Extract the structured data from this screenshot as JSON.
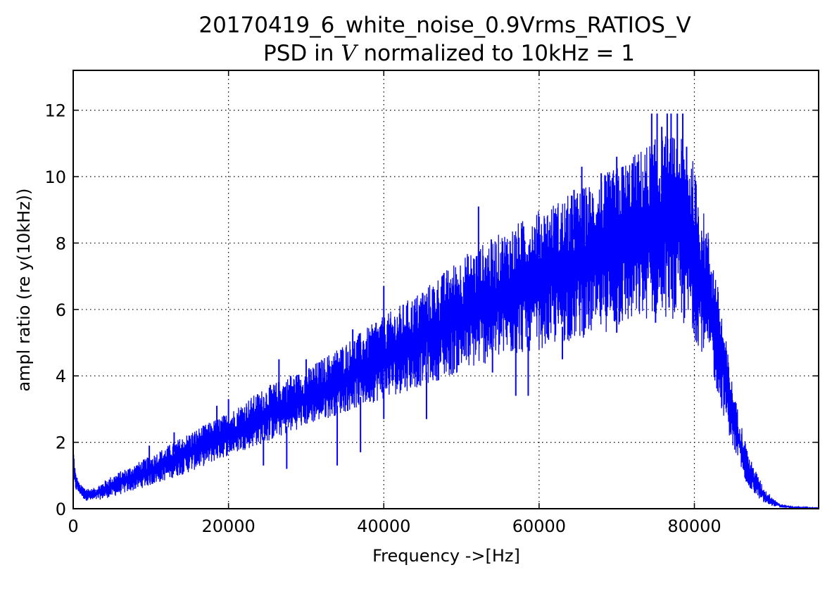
{
  "chart_data": {
    "type": "line",
    "title": "20170419_6_white_noise_0.9Vrms_RATIOS_V",
    "subtitle_parts": {
      "prefix": "PSD in ",
      "symbol": "V",
      "suffix": " normalized to 10kHz = 1"
    },
    "xlabel": "Frequency ->[Hz]",
    "ylabel": "ampl ratio (re y(10kHz))",
    "xlim": [
      0,
      96000
    ],
    "ylim": [
      0,
      13.2
    ],
    "xticks": [
      0,
      20000,
      40000,
      60000,
      80000
    ],
    "yticks": [
      0,
      2,
      4,
      6,
      8,
      10,
      12
    ],
    "xtick_labels": [
      "0",
      "20000",
      "40000",
      "60000",
      "80000"
    ],
    "ytick_labels": [
      "0",
      "2",
      "4",
      "6",
      "8",
      "10",
      "12"
    ],
    "grid": true,
    "series": [
      {
        "name": "ratio",
        "color": "#0000ff",
        "envelope": {
          "x": [
            0,
            300,
            800,
            1500,
            2500,
            5000,
            10000,
            15000,
            20000,
            25000,
            30000,
            35000,
            40000,
            45000,
            50000,
            55000,
            60000,
            65000,
            70000,
            74000,
            76000,
            78000,
            79500,
            80500,
            82000,
            83500,
            85000,
            87000,
            89000,
            91000,
            93000,
            96000
          ],
          "upper": [
            2.0,
            1.1,
            0.75,
            0.65,
            0.6,
            1.0,
            1.6,
            2.3,
            2.9,
            3.7,
            4.2,
            5.0,
            5.8,
            6.6,
            7.6,
            8.3,
            9.0,
            9.6,
            10.3,
            11.0,
            11.3,
            11.2,
            10.9,
            9.6,
            8.2,
            6.0,
            3.6,
            1.6,
            0.6,
            0.15,
            0.05,
            0.02
          ],
          "lower": [
            0.6,
            0.55,
            0.45,
            0.25,
            0.22,
            0.35,
            0.7,
            1.1,
            1.6,
            2.0,
            2.5,
            2.9,
            3.3,
            3.7,
            4.1,
            4.5,
            4.8,
            5.1,
            5.4,
            5.7,
            5.8,
            5.6,
            5.3,
            4.9,
            4.3,
            3.0,
            1.8,
            0.6,
            0.15,
            0.03,
            0.01,
            0.0
          ]
        },
        "spikes": [
          [
            9800,
            1.9
          ],
          [
            13000,
            2.3
          ],
          [
            18500,
            3.1
          ],
          [
            20000,
            3.3
          ],
          [
            26500,
            4.5
          ],
          [
            28000,
            4.0
          ],
          [
            30000,
            4.5
          ],
          [
            36000,
            5.4
          ],
          [
            39000,
            5.6
          ],
          [
            40000,
            6.7
          ],
          [
            45000,
            6.5
          ],
          [
            47500,
            7.0
          ],
          [
            52200,
            9.1
          ],
          [
            54000,
            7.5
          ],
          [
            58000,
            8.5
          ],
          [
            60000,
            8.8
          ],
          [
            62000,
            8.9
          ],
          [
            64500,
            9.6
          ],
          [
            65500,
            10.3
          ],
          [
            68000,
            10.1
          ],
          [
            70000,
            10.6
          ],
          [
            70800,
            10.3
          ],
          [
            72000,
            10.4
          ],
          [
            74500,
            11.9
          ],
          [
            75200,
            11.9
          ],
          [
            75800,
            11.5
          ],
          [
            76500,
            11.9
          ],
          [
            77000,
            11.9
          ],
          [
            77800,
            11.9
          ],
          [
            78500,
            11.9
          ],
          [
            79000,
            10.9
          ]
        ],
        "dips": [
          [
            24500,
            1.3
          ],
          [
            27500,
            1.2
          ],
          [
            34000,
            1.3
          ],
          [
            37000,
            1.7
          ],
          [
            40000,
            2.7
          ],
          [
            45500,
            2.7
          ],
          [
            54000,
            4.1
          ],
          [
            57000,
            3.4
          ],
          [
            58600,
            3.4
          ],
          [
            63000,
            4.5
          ],
          [
            70000,
            5.3
          ],
          [
            75000,
            5.6
          ]
        ],
        "max_ratio_note": "dense oscillating noise between lower and upper envelope"
      }
    ]
  }
}
